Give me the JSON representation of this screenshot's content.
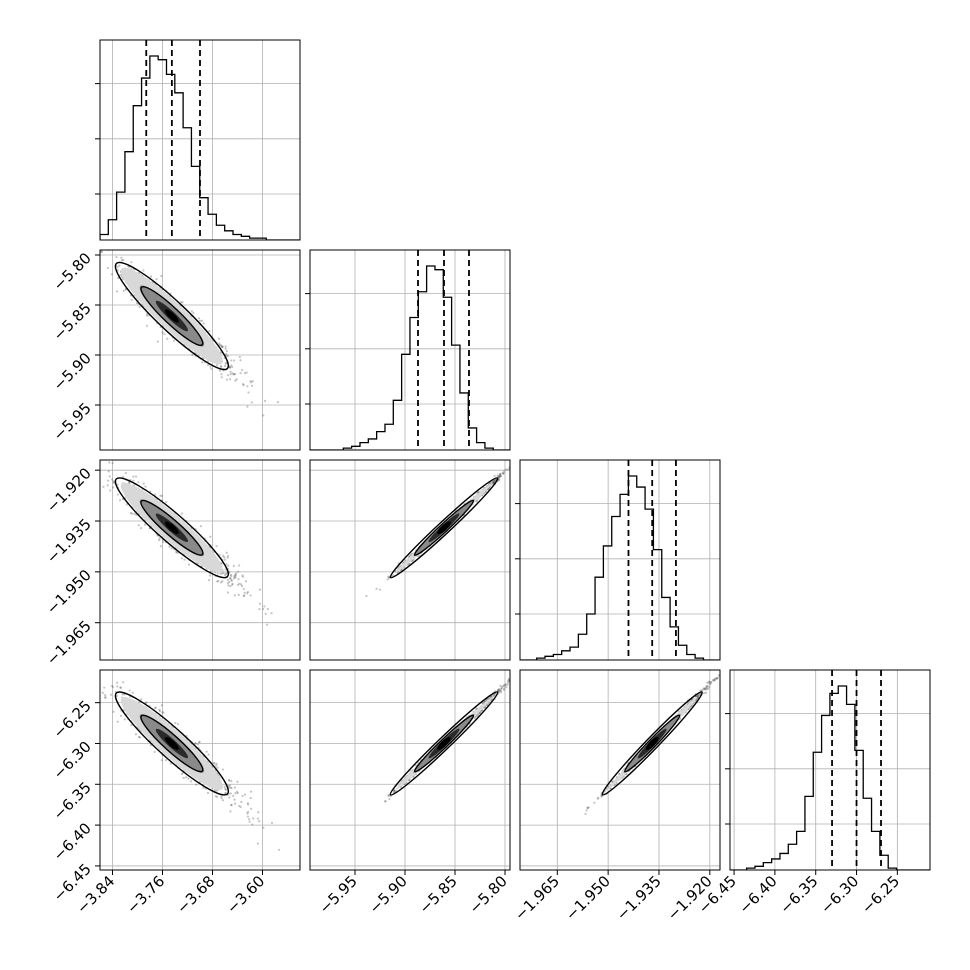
{
  "chart_data": {
    "type": "corner",
    "title": "",
    "grid": true,
    "colors": {
      "line": "#000000",
      "grid": "#b0b0b0",
      "points": "#555555",
      "background": "#ffffff"
    },
    "parameters": [
      {
        "name": "",
        "range": [
          -3.86,
          -3.54
        ],
        "ticks": [
          -3.84,
          -3.76,
          -3.68,
          -3.6
        ],
        "tick_labels": [
          "−3.84",
          "−3.76",
          "−3.68",
          "−3.60"
        ],
        "quantiles": [
          -3.786,
          -3.745,
          -3.7
        ]
      },
      {
        "name": "",
        "range": [
          -5.995,
          -5.795
        ],
        "ticks": [
          -5.8,
          -5.85,
          -5.9,
          -5.95
        ],
        "tick_labels": [
          "−5.80",
          "−5.85",
          "−5.90",
          "−5.95"
        ],
        "quantiles": [
          -5.887,
          -5.861,
          -5.836
        ]
      },
      {
        "name": "",
        "range": [
          -1.976,
          -1.917
        ],
        "ticks": [
          -1.92,
          -1.935,
          -1.95,
          -1.965
        ],
        "tick_labels": [
          "−1.920",
          "−1.935",
          "−1.950",
          "−1.965"
        ],
        "quantiles": [
          -1.944,
          -1.937,
          -1.93
        ]
      },
      {
        "name": "",
        "range": [
          -6.455,
          -6.21
        ],
        "ticks": [
          -6.25,
          -6.3,
          -6.35,
          -6.4,
          -6.45
        ],
        "tick_labels": [
          "−6.25",
          "−6.30",
          "−6.35",
          "−6.40",
          "−6.45"
        ],
        "quantiles": [
          -6.33,
          -6.3,
          -6.27
        ]
      }
    ],
    "histograms": [
      {
        "x_start": -3.86,
        "bin_width": 0.0133,
        "counts": [
          3,
          11,
          26,
          48,
          73,
          88,
          100,
          98,
          90,
          80,
          61,
          40,
          23,
          14,
          8,
          5,
          3,
          2,
          1,
          1,
          0,
          0,
          0,
          0
        ]
      },
      {
        "x_start": -5.995,
        "bin_width": 0.00833,
        "counts": [
          0,
          0,
          0,
          0,
          1,
          2,
          4,
          6,
          10,
          14,
          27,
          52,
          72,
          86,
          100,
          98,
          83,
          57,
          31,
          12,
          4,
          1,
          0,
          0
        ]
      },
      {
        "x_start": -1.976,
        "bin_width": 0.00246,
        "counts": [
          0,
          0,
          1,
          2,
          3,
          5,
          7,
          14,
          25,
          45,
          62,
          78,
          90,
          100,
          94,
          82,
          60,
          34,
          18,
          8,
          3,
          1,
          0,
          0
        ]
      },
      {
        "x_start": -6.455,
        "bin_width": 0.0102,
        "counts": [
          0,
          0,
          1,
          2,
          4,
          6,
          9,
          14,
          21,
          40,
          64,
          84,
          96,
          100,
          90,
          65,
          39,
          21,
          8,
          1,
          0,
          0,
          0,
          0
        ]
      }
    ]
  }
}
